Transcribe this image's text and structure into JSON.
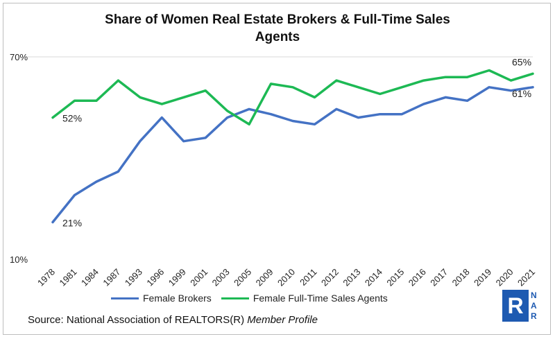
{
  "chart_data": {
    "type": "line",
    "title": "Share of Women Real Estate Brokers & Full-Time Sales Agents",
    "xlabel": "",
    "ylabel": "",
    "categories": [
      "1978",
      "1981",
      "1984",
      "1987",
      "1993",
      "1996",
      "1999",
      "2001",
      "2003",
      "2005",
      "2009",
      "2010",
      "2011",
      "2012",
      "2013",
      "2014",
      "2015",
      "2016",
      "2017",
      "2018",
      "2019",
      "2020",
      "2021"
    ],
    "ylim": [
      10,
      70
    ],
    "y_ticks": [
      "70%",
      "10%"
    ],
    "grid": "horizontal line at 70%",
    "legend_position": "bottom",
    "series": [
      {
        "name": "Female Brokers",
        "color": "#4472c4",
        "values": [
          21,
          29,
          33,
          36,
          45,
          52,
          45,
          46,
          52,
          54.5,
          53,
          51,
          50,
          54.5,
          52,
          53,
          53,
          56,
          58,
          57,
          61,
          60,
          61
        ]
      },
      {
        "name": "Female Full-Time Sales Agents",
        "color": "#1db954",
        "values": [
          52,
          57,
          57,
          63,
          58,
          56,
          58,
          60,
          54,
          50,
          62,
          61,
          58,
          63,
          61,
          59,
          61,
          63,
          64,
          64,
          66,
          63,
          65
        ]
      }
    ],
    "annotations": [
      {
        "series": 0,
        "index": 0,
        "text": "21%"
      },
      {
        "series": 1,
        "index": 0,
        "text": "52%"
      },
      {
        "series": 0,
        "index": 22,
        "text": "61%"
      },
      {
        "series": 1,
        "index": 22,
        "text": "65%"
      }
    ]
  },
  "source": {
    "prefix": "Source: National Association of REALTORS(R) ",
    "italic": "Member Profile"
  },
  "logo": {
    "letters": [
      "N",
      "A",
      "R"
    ],
    "mark": "R",
    "color": "#1e5ab1"
  }
}
